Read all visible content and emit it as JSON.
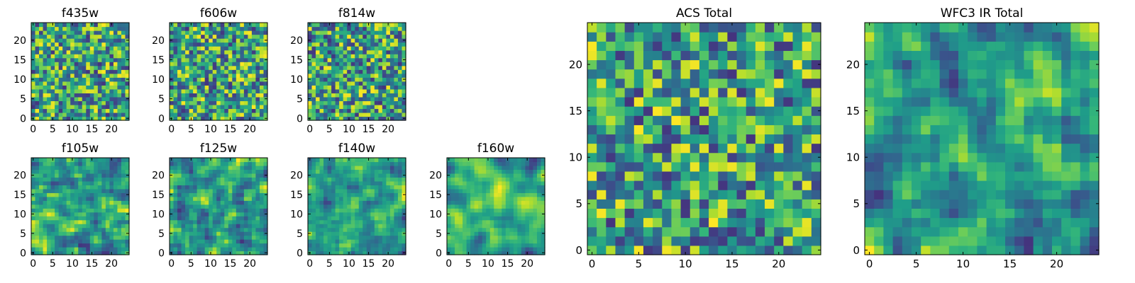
{
  "chart_data": [
    {
      "type": "heatmap",
      "title": "f435w",
      "xticks": [
        "0",
        "5",
        "10",
        "15",
        "20"
      ],
      "yticks": [
        "0",
        "5",
        "10",
        "15",
        "20"
      ],
      "xlim": [
        -0.5,
        24.5
      ],
      "ylim": [
        -0.5,
        24.5
      ],
      "cmap": "viridis",
      "grid": false
    },
    {
      "type": "heatmap",
      "title": "f606w",
      "xticks": [
        "0",
        "5",
        "10",
        "15",
        "20"
      ],
      "yticks": [
        "0",
        "5",
        "10",
        "15",
        "20"
      ],
      "xlim": [
        -0.5,
        24.5
      ],
      "ylim": [
        -0.5,
        24.5
      ],
      "cmap": "viridis",
      "grid": false
    },
    {
      "type": "heatmap",
      "title": "f814w",
      "xticks": [
        "0",
        "5",
        "10",
        "15",
        "20"
      ],
      "yticks": [
        "0",
        "5",
        "10",
        "15",
        "20"
      ],
      "xlim": [
        -0.5,
        24.5
      ],
      "ylim": [
        -0.5,
        24.5
      ],
      "cmap": "viridis",
      "grid": false
    },
    {
      "type": "heatmap",
      "title": "f105w",
      "xticks": [
        "0",
        "5",
        "10",
        "15",
        "20"
      ],
      "yticks": [
        "0",
        "5",
        "10",
        "15",
        "20"
      ],
      "xlim": [
        -0.5,
        24.5
      ],
      "ylim": [
        -0.5,
        24.5
      ],
      "cmap": "viridis",
      "grid": false
    },
    {
      "type": "heatmap",
      "title": "f125w",
      "xticks": [
        "0",
        "5",
        "10",
        "15",
        "20"
      ],
      "yticks": [
        "0",
        "5",
        "10",
        "15",
        "20"
      ],
      "xlim": [
        -0.5,
        24.5
      ],
      "ylim": [
        -0.5,
        24.5
      ],
      "cmap": "viridis",
      "grid": false
    },
    {
      "type": "heatmap",
      "title": "f140w",
      "xticks": [
        "0",
        "5",
        "10",
        "15",
        "20"
      ],
      "yticks": [
        "0",
        "5",
        "10",
        "15",
        "20"
      ],
      "xlim": [
        -0.5,
        24.5
      ],
      "ylim": [
        -0.5,
        24.5
      ],
      "cmap": "viridis",
      "grid": false
    },
    {
      "type": "heatmap",
      "title": "f160w",
      "xticks": [
        "0",
        "5",
        "10",
        "15",
        "20"
      ],
      "yticks": [
        "0",
        "5",
        "10",
        "15",
        "20"
      ],
      "xlim": [
        -0.5,
        24.5
      ],
      "ylim": [
        -0.5,
        24.5
      ],
      "cmap": "viridis",
      "grid": false
    },
    {
      "type": "heatmap",
      "title": "ACS Total",
      "xticks": [
        "0",
        "5",
        "10",
        "15",
        "20"
      ],
      "yticks": [
        "0",
        "5",
        "10",
        "15",
        "20"
      ],
      "xlim": [
        -0.5,
        24.5
      ],
      "ylim": [
        -0.5,
        24.5
      ],
      "cmap": "viridis",
      "grid": false
    },
    {
      "type": "heatmap",
      "title": "WFC3 IR Total",
      "xticks": [
        "0",
        "5",
        "10",
        "15",
        "20"
      ],
      "yticks": [
        "0",
        "5",
        "10",
        "15",
        "20"
      ],
      "xlim": [
        -0.5,
        24.5
      ],
      "ylim": [
        -0.5,
        24.5
      ],
      "cmap": "viridis",
      "grid": false
    }
  ]
}
